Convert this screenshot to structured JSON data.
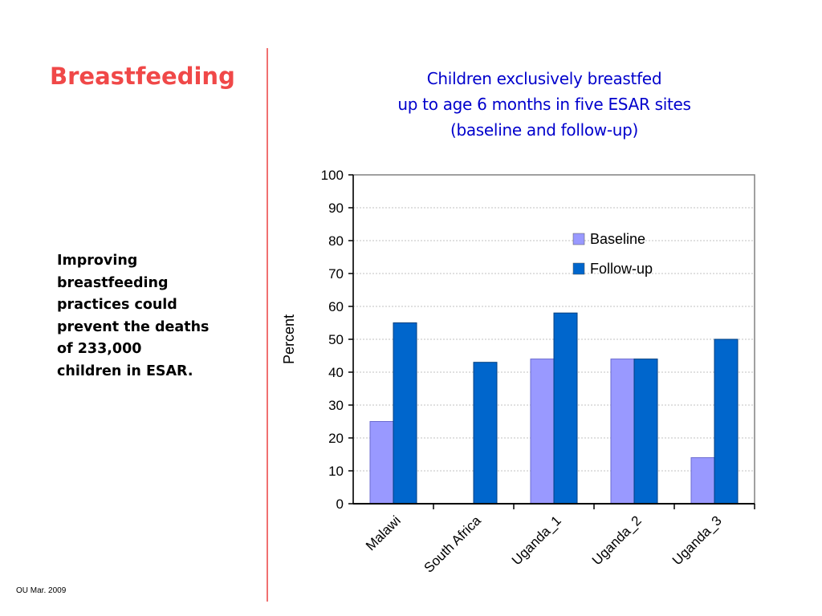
{
  "slide": {
    "title": "Breastfeeding",
    "note_lines": [
      "Improving",
      "breastfeeding",
      "practices could",
      "prevent the deaths",
      "of 233,000",
      "children in ESAR."
    ],
    "footer": "OU Mar. 2009"
  },
  "colors": {
    "title": "#f04848",
    "divider": "#f07070",
    "chart_title": "#0000cc",
    "baseline": "#9999ff",
    "followup": "#0066cc"
  },
  "chart_data": {
    "type": "bar",
    "title_lines": [
      "Children exclusively breastfed",
      "up to age 6 months in five ESAR sites",
      "(baseline and follow-up)"
    ],
    "xlabel": "",
    "ylabel": "Percent",
    "ylim": [
      0,
      100
    ],
    "yticks": [
      0,
      10,
      20,
      30,
      40,
      50,
      60,
      70,
      80,
      90,
      100
    ],
    "categories": [
      "Malawi",
      "South Africa",
      "Uganda_1",
      "Uganda_2",
      "Uganda_3"
    ],
    "series": [
      {
        "name": "Baseline",
        "color": "#9999ff",
        "values": [
          25,
          0,
          44,
          44,
          14
        ]
      },
      {
        "name": "Follow-up",
        "color": "#0066cc",
        "values": [
          55,
          43,
          58,
          44,
          50
        ]
      }
    ],
    "grid": true,
    "legend": "top-right"
  }
}
